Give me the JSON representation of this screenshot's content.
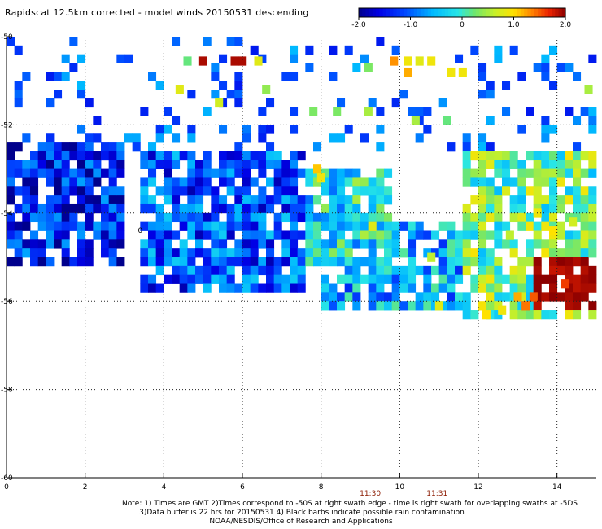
{
  "chart_data": {
    "type": "heatmap",
    "title": "Rapidscat 12.5km corrected - model winds 20150531 descending",
    "xlim": [
      0,
      15
    ],
    "ylim": [
      -60,
      -50
    ],
    "x_ticks": [
      "0",
      "2",
      "4",
      "6",
      "8",
      "10",
      "12",
      "14"
    ],
    "x_tick_values": [
      0,
      2,
      4,
      6,
      8,
      10,
      12,
      14
    ],
    "y_ticks": [
      "-50",
      "-52",
      "-54",
      "-56",
      "-58",
      "-60"
    ],
    "y_tick_values": [
      -50,
      -52,
      -54,
      -56,
      -58,
      -60
    ],
    "grid": true,
    "colorbar": {
      "min": -2.0,
      "max": 2.0,
      "labels": [
        "-2.0",
        "-1.0",
        "0",
        "1.0",
        "2.0"
      ],
      "label_values": [
        -2.0,
        -1.0,
        0,
        1.0,
        2.0
      ]
    },
    "time_labels": [
      {
        "text": "11:30",
        "x": 9.25
      },
      {
        "text": "11:31",
        "x": 10.95
      }
    ],
    "annotations": [
      {
        "text": "0",
        "x": 3.4,
        "y": -54.45
      }
    ],
    "regions": [
      {
        "x0": 0.0,
        "x1": 3.0,
        "y0": -55.3,
        "y1": -52.5,
        "mean": -1.4
      },
      {
        "x0": 3.4,
        "x1": 7.6,
        "y0": -55.9,
        "y1": -52.6,
        "mean": -1.1
      },
      {
        "x0": 5.8,
        "x1": 9.8,
        "y0": -55.3,
        "y1": -53.0,
        "mean": -0.2
      },
      {
        "x0": 8.0,
        "x1": 11.6,
        "y0": -56.3,
        "y1": -54.2,
        "mean": -0.6
      },
      {
        "x0": 11.6,
        "x1": 15.0,
        "y0": -56.5,
        "y1": -52.6,
        "mean": 0.2
      },
      {
        "x0": 13.3,
        "x1": 15.0,
        "y0": -56.2,
        "y1": -55.0,
        "mean": 1.95
      },
      {
        "x0": 0.0,
        "x1": 15.0,
        "y0": -52.6,
        "y1": -50.0,
        "mean": -1.0,
        "sparse": true
      }
    ],
    "cells": [
      {
        "x": 5.0,
        "y": -50.55,
        "v": 1.9
      },
      {
        "x": 5.8,
        "y": -50.55,
        "v": 1.9
      },
      {
        "x": 6.0,
        "y": -50.55,
        "v": 1.9
      },
      {
        "x": 4.6,
        "y": -50.55,
        "v": 0.2
      },
      {
        "x": 6.4,
        "y": -50.55,
        "v": 0.8
      },
      {
        "x": 9.85,
        "y": -50.55,
        "v": 1.3
      },
      {
        "x": 10.2,
        "y": -50.8,
        "v": 1.2
      },
      {
        "x": 10.5,
        "y": -50.55,
        "v": 0.8
      },
      {
        "x": 10.8,
        "y": -50.55,
        "v": 0.9
      },
      {
        "x": 11.3,
        "y": -50.8,
        "v": 0.9
      },
      {
        "x": 11.6,
        "y": -50.8,
        "v": 0.9
      },
      {
        "x": 10.2,
        "y": -50.55,
        "v": 0.9
      },
      {
        "x": 9.2,
        "y": -50.7,
        "v": 0.3
      },
      {
        "x": 4.4,
        "y": -51.2,
        "v": 0.8
      },
      {
        "x": 5.4,
        "y": -51.5,
        "v": 0.7
      },
      {
        "x": 6.6,
        "y": -51.2,
        "v": 0.4
      },
      {
        "x": 10.4,
        "y": -51.9,
        "v": 0.5
      },
      {
        "x": 11.2,
        "y": -51.9,
        "v": 0.2
      },
      {
        "x": 14.8,
        "y": -51.2,
        "v": 0.5
      },
      {
        "x": 7.8,
        "y": -51.7,
        "v": 0.3
      },
      {
        "x": 8.4,
        "y": -51.7,
        "v": 0.3
      },
      {
        "x": 9.2,
        "y": -51.7,
        "v": 0.5
      },
      {
        "x": 7.9,
        "y": -53.0,
        "v": 1.1
      },
      {
        "x": 8.0,
        "y": -53.2,
        "v": 0.9
      },
      {
        "x": 9.3,
        "y": -54.3,
        "v": 0.8
      },
      {
        "x": 10.8,
        "y": -55.0,
        "v": 0.6
      },
      {
        "x": 11.0,
        "y": -56.1,
        "v": 0.8
      },
      {
        "x": 12.2,
        "y": -56.3,
        "v": 1.0
      },
      {
        "x": 12.6,
        "y": -56.2,
        "v": 0.9
      },
      {
        "x": 13.0,
        "y": -55.9,
        "v": 1.2
      },
      {
        "x": 13.2,
        "y": -56.1,
        "v": 1.4
      },
      {
        "x": 13.4,
        "y": -55.9,
        "v": 1.5
      },
      {
        "x": 14.2,
        "y": -55.6,
        "v": 1.6
      },
      {
        "x": 12.8,
        "y": -54.5,
        "v": 0.6
      },
      {
        "x": 13.5,
        "y": -54.0,
        "v": 0.9
      },
      {
        "x": 13.9,
        "y": -54.4,
        "v": 1.0
      },
      {
        "x": 14.4,
        "y": -54.2,
        "v": 0.7
      }
    ]
  },
  "notes": {
    "line1": "Note: 1) Times are GMT 2)Times correspond to -50S at right swath edge - time is right swath for overlapping swaths at -5DS",
    "line2": "3)Data buffer is 22 hrs for 20150531 4) Black barbs indicate possible rain contamination",
    "line3": "NOAA/NESDIS/Office of Research and Applications"
  }
}
